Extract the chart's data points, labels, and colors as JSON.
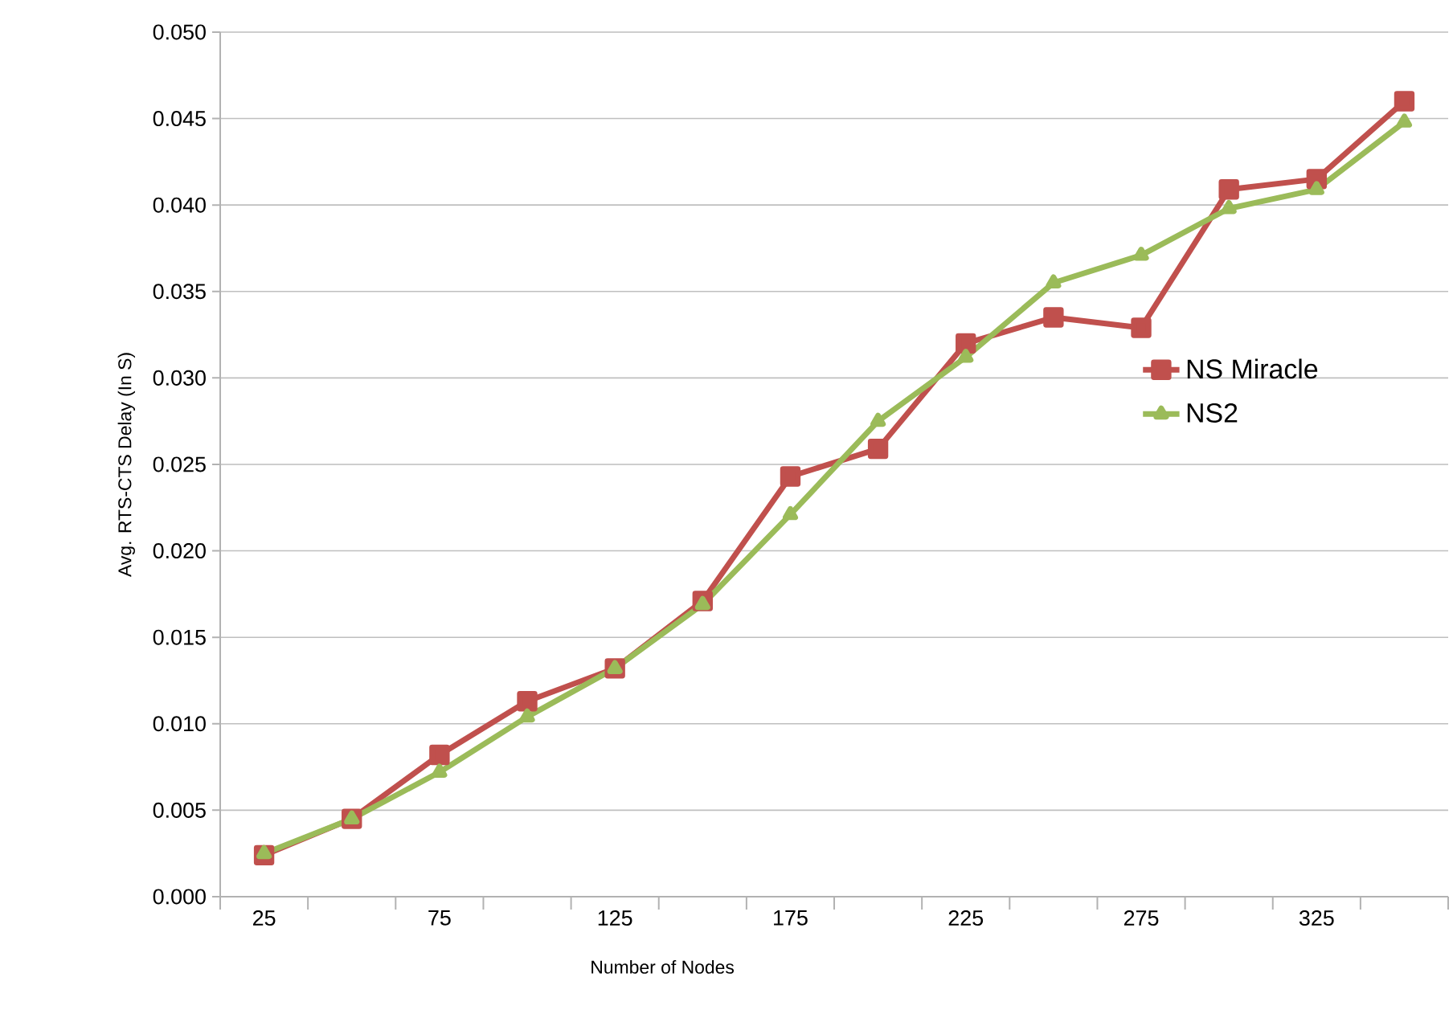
{
  "chart_data": {
    "type": "line",
    "xlabel": "Number of Nodes",
    "ylabel": "Avg. RTS-CTS Delay (In S)",
    "categories": [
      "25",
      null,
      "75",
      null,
      "125",
      null,
      "175",
      null,
      "225",
      null,
      "275",
      null,
      "325",
      null
    ],
    "series": [
      {
        "name": "NS Miracle",
        "color": "#c0504d",
        "marker": "square",
        "values": [
          0.0024,
          0.0045,
          0.0082,
          0.0113,
          0.0132,
          0.0171,
          0.0243,
          0.0259,
          0.032,
          0.0335,
          0.0329,
          0.0409,
          0.0415,
          0.046
        ]
      },
      {
        "name": "NS2",
        "color": "#9bbb59",
        "marker": "triangle",
        "values": [
          0.0025,
          0.0045,
          0.0072,
          0.0104,
          0.0132,
          0.0169,
          0.0221,
          0.0275,
          0.0312,
          0.0355,
          0.0371,
          0.0398,
          0.0409,
          0.0448
        ]
      }
    ],
    "ylim": [
      0,
      0.05
    ],
    "yticks": [
      {
        "value": 0,
        "label": "0.000"
      },
      {
        "value": 0.005,
        "label": "0.005"
      },
      {
        "value": 0.01,
        "label": "0.010"
      },
      {
        "value": 0.015,
        "label": "0.015"
      },
      {
        "value": 0.02,
        "label": "0.020"
      },
      {
        "value": 0.025,
        "label": "0.025"
      },
      {
        "value": 0.03,
        "label": "0.030"
      },
      {
        "value": 0.035,
        "label": "0.035"
      },
      {
        "value": 0.04,
        "label": "0.040"
      },
      {
        "value": 0.045,
        "label": "0.045"
      },
      {
        "value": 0.05,
        "label": "0.050"
      }
    ],
    "grid": "y",
    "legend": "right",
    "line_style": "solid"
  }
}
